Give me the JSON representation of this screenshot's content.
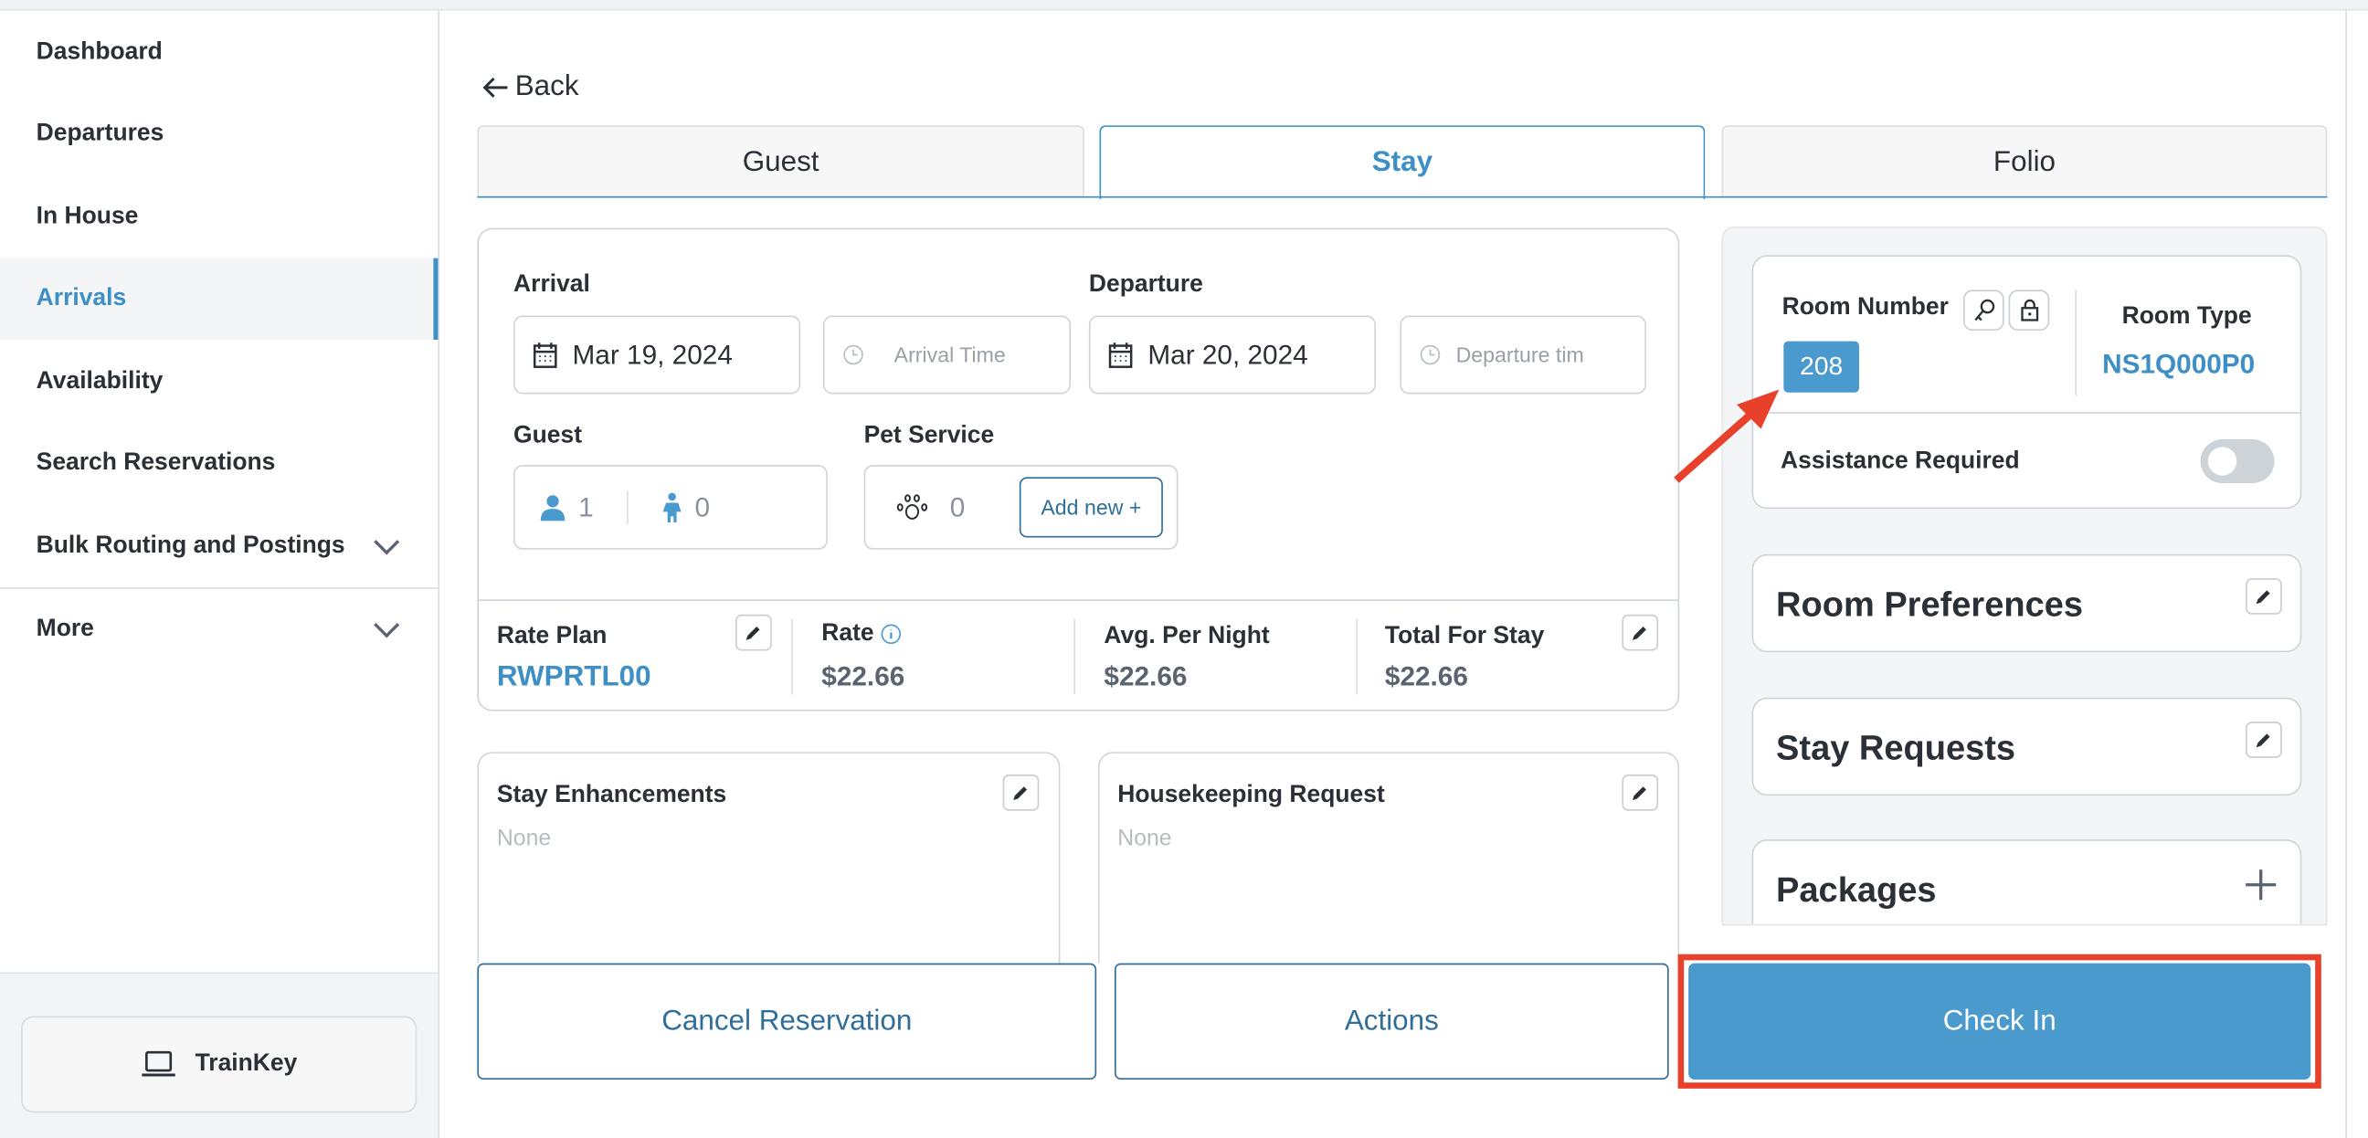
{
  "sidebar": {
    "items": [
      {
        "label": "Dashboard"
      },
      {
        "label": "Departures"
      },
      {
        "label": "In House"
      },
      {
        "label": "Arrivals",
        "active": true
      },
      {
        "label": "Availability"
      },
      {
        "label": "Search Reservations"
      },
      {
        "label": "Bulk Routing and Postings",
        "expandable": true
      },
      {
        "label": "More",
        "expandable": true
      }
    ],
    "trainkey_label": "TrainKey"
  },
  "back_label": "Back",
  "tabs": [
    {
      "label": "Guest"
    },
    {
      "label": "Stay",
      "active": true
    },
    {
      "label": "Folio"
    }
  ],
  "stay": {
    "arrival_label": "Arrival",
    "arrival_date": "Mar 19, 2024",
    "arrival_time_placeholder": "Arrival Time",
    "departure_label": "Departure",
    "departure_date": "Mar 20, 2024",
    "departure_time_placeholder": "Departure tim",
    "guest_label": "Guest",
    "adults": "1",
    "children": "0",
    "pet_label": "Pet Service",
    "pets": "0",
    "add_new_label": "Add new +",
    "rate_plan_label": "Rate Plan",
    "rate_plan": "RWPRTL00",
    "rate_label": "Rate",
    "rate": "$22.66",
    "avg_label": "Avg. Per Night",
    "avg": "$22.66",
    "total_label": "Total For Stay",
    "total": "$22.66",
    "enhancements_label": "Stay Enhancements",
    "enhancements_value": "None",
    "housekeeping_label": "Housekeeping Request",
    "housekeeping_value": "None"
  },
  "room": {
    "number_label": "Room Number",
    "number": "208",
    "type_label": "Room Type",
    "type": "NS1Q000P0",
    "assistance_label": "Assistance Required",
    "assistance_on": false,
    "preferences_label": "Room Preferences",
    "requests_label": "Stay Requests",
    "packages_label": "Packages"
  },
  "actions": {
    "cancel_label": "Cancel Reservation",
    "actions_label": "Actions",
    "checkin_label": "Check In"
  },
  "colors": {
    "accent": "#3d8fc6",
    "checkin": "#4a9acd",
    "annotation": "#e8402a"
  }
}
